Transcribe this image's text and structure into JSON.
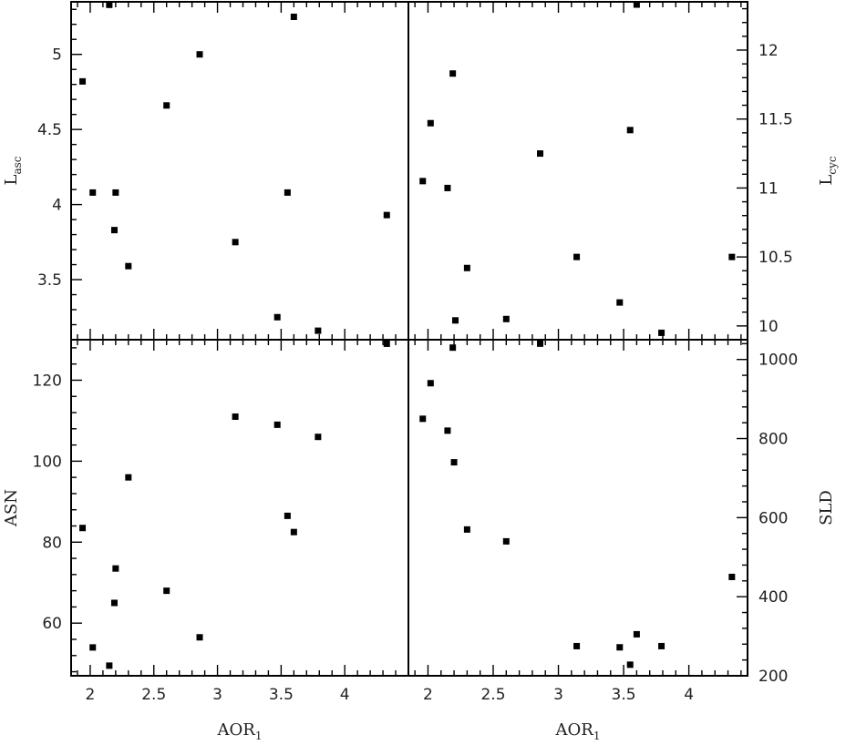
{
  "chart_data": [
    {
      "id": "top-left",
      "type": "scatter",
      "xlabel": "",
      "ylabel": "L",
      "ylabel_sub": "asc",
      "xlim": [
        1.85,
        4.5
      ],
      "ylim": [
        3.1,
        5.35
      ],
      "yticks": [
        3.5,
        4,
        4.5,
        5
      ],
      "ytick_labels": [
        "3.5",
        "4",
        "4.5",
        "5"
      ],
      "points": [
        {
          "x": 1.94,
          "y": 4.82
        },
        {
          "x": 2.02,
          "y": 4.08
        },
        {
          "x": 2.15,
          "y": 5.33
        },
        {
          "x": 2.19,
          "y": 3.83
        },
        {
          "x": 2.2,
          "y": 4.08
        },
        {
          "x": 2.3,
          "y": 3.59
        },
        {
          "x": 2.6,
          "y": 4.66
        },
        {
          "x": 2.86,
          "y": 5.0
        },
        {
          "x": 3.14,
          "y": 3.75
        },
        {
          "x": 3.47,
          "y": 3.25
        },
        {
          "x": 3.55,
          "y": 4.08
        },
        {
          "x": 3.6,
          "y": 5.25
        },
        {
          "x": 3.79,
          "y": 3.16
        },
        {
          "x": 4.33,
          "y": 3.93
        }
      ]
    },
    {
      "id": "top-right",
      "type": "scatter",
      "xlabel": "",
      "ylabel": "L",
      "ylabel_sub": "cyc",
      "xlim": [
        1.85,
        4.45
      ],
      "ylim": [
        9.9,
        12.35
      ],
      "yticks": [
        10,
        10.5,
        11,
        11.5,
        12
      ],
      "ytick_labels": [
        "10",
        "10.5",
        "11",
        "11.5",
        "12"
      ],
      "points": [
        {
          "x": 1.96,
          "y": 11.05
        },
        {
          "x": 2.02,
          "y": 11.47
        },
        {
          "x": 2.15,
          "y": 11.0
        },
        {
          "x": 2.19,
          "y": 11.83
        },
        {
          "x": 2.21,
          "y": 10.04
        },
        {
          "x": 2.3,
          "y": 10.42
        },
        {
          "x": 2.6,
          "y": 10.05
        },
        {
          "x": 2.86,
          "y": 11.25
        },
        {
          "x": 3.14,
          "y": 10.5
        },
        {
          "x": 3.47,
          "y": 10.17
        },
        {
          "x": 3.55,
          "y": 11.42
        },
        {
          "x": 3.6,
          "y": 12.33
        },
        {
          "x": 3.79,
          "y": 9.95
        },
        {
          "x": 4.33,
          "y": 10.5
        }
      ]
    },
    {
      "id": "bottom-left",
      "type": "scatter",
      "xlabel": "AOR",
      "xlabel_sub": "1",
      "ylabel": "ASN",
      "xlim": [
        1.85,
        4.5
      ],
      "ylim": [
        47,
        130
      ],
      "xticks": [
        2,
        2.5,
        3,
        3.5,
        4
      ],
      "xtick_labels": [
        "2",
        "2.5",
        "3",
        "3.5",
        "4"
      ],
      "yticks": [
        60,
        80,
        100,
        120
      ],
      "ytick_labels": [
        "60",
        "80",
        "100",
        "120"
      ],
      "points": [
        {
          "x": 1.94,
          "y": 83.5
        },
        {
          "x": 2.02,
          "y": 54.0
        },
        {
          "x": 2.15,
          "y": 49.5
        },
        {
          "x": 2.19,
          "y": 65.0
        },
        {
          "x": 2.2,
          "y": 73.5
        },
        {
          "x": 2.3,
          "y": 96.0
        },
        {
          "x": 2.6,
          "y": 68.0
        },
        {
          "x": 2.86,
          "y": 56.5
        },
        {
          "x": 3.14,
          "y": 111.0
        },
        {
          "x": 3.47,
          "y": 109.0
        },
        {
          "x": 3.55,
          "y": 86.5
        },
        {
          "x": 3.6,
          "y": 82.5
        },
        {
          "x": 3.79,
          "y": 106.0
        },
        {
          "x": 4.33,
          "y": 129.0
        }
      ]
    },
    {
      "id": "bottom-right",
      "type": "scatter",
      "xlabel": "AOR",
      "xlabel_sub": "1",
      "ylabel": "SLD",
      "xlim": [
        1.85,
        4.45
      ],
      "ylim": [
        200,
        1050
      ],
      "xticks": [
        2,
        2.5,
        3,
        3.5,
        4
      ],
      "xtick_labels": [
        "2",
        "2.5",
        "3",
        "3.5",
        "4"
      ],
      "yticks": [
        200,
        400,
        600,
        800,
        1000
      ],
      "ytick_labels": [
        "200",
        "400",
        "600",
        "800",
        "1000"
      ],
      "points": [
        {
          "x": 1.96,
          "y": 850
        },
        {
          "x": 2.02,
          "y": 940
        },
        {
          "x": 2.15,
          "y": 820
        },
        {
          "x": 2.19,
          "y": 1030
        },
        {
          "x": 2.2,
          "y": 740
        },
        {
          "x": 2.3,
          "y": 570
        },
        {
          "x": 2.6,
          "y": 540
        },
        {
          "x": 2.86,
          "y": 1040
        },
        {
          "x": 3.14,
          "y": 275
        },
        {
          "x": 3.47,
          "y": 272
        },
        {
          "x": 3.55,
          "y": 228
        },
        {
          "x": 3.6,
          "y": 305
        },
        {
          "x": 3.79,
          "y": 275
        },
        {
          "x": 4.33,
          "y": 450
        }
      ]
    }
  ]
}
